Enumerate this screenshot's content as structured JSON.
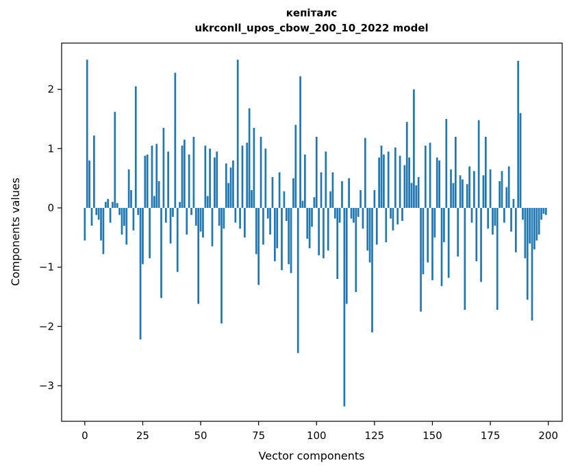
{
  "figure": {
    "background": "#ffffff",
    "frame_color": "#000000"
  },
  "chart_data": {
    "type": "bar",
    "title_line1": "кепіталс",
    "title_line2": "ukrconll_upos_cbow_200_10_2022 model",
    "xlabel": "Vector components",
    "ylabel": "Components values",
    "bar_color": "#1f77b4",
    "legend": "none",
    "grid": false,
    "xlim": [
      -10,
      206
    ],
    "ylim": [
      -3.6,
      2.78
    ],
    "xticks": {
      "values": [
        0,
        25,
        50,
        75,
        100,
        125,
        150,
        175,
        200
      ],
      "labels": [
        "0",
        "25",
        "50",
        "75",
        "100",
        "125",
        "150",
        "175",
        "200"
      ]
    },
    "yticks": {
      "values": [
        2,
        1,
        0,
        -1,
        -2,
        -3
      ],
      "labels": [
        "2",
        "1",
        "0",
        "−1",
        "−2",
        "−3"
      ]
    },
    "x_start": 0,
    "values": [
      -0.55,
      2.5,
      0.8,
      -0.3,
      1.22,
      -0.12,
      -0.2,
      -0.55,
      -0.78,
      0.1,
      0.15,
      -0.25,
      0.1,
      1.62,
      0.08,
      -0.12,
      -0.45,
      -0.3,
      -0.62,
      0.65,
      0.3,
      -0.38,
      2.05,
      -0.12,
      -2.22,
      -0.95,
      0.88,
      0.9,
      -0.85,
      1.05,
      0.2,
      1.08,
      0.45,
      -1.52,
      1.35,
      -0.25,
      0.95,
      -0.6,
      -0.15,
      2.28,
      -1.08,
      0.1,
      1.05,
      1.15,
      -0.45,
      0.9,
      -0.12,
      1.2,
      -0.3,
      -1.62,
      -0.4,
      -0.5,
      1.05,
      0.2,
      1.0,
      -0.65,
      0.85,
      0.95,
      -0.3,
      -1.95,
      -0.35,
      0.75,
      0.42,
      0.68,
      0.8,
      -0.25,
      2.5,
      -0.35,
      1.05,
      -0.5,
      1.1,
      1.68,
      0.3,
      1.35,
      -0.78,
      -1.3,
      1.2,
      -0.62,
      1.0,
      -0.18,
      -0.45,
      0.52,
      -0.9,
      -0.68,
      0.6,
      -1.05,
      0.28,
      -0.22,
      -0.95,
      -1.1,
      0.5,
      1.4,
      -2.45,
      2.22,
      0.12,
      0.9,
      -0.52,
      -0.68,
      -0.32,
      0.18,
      1.2,
      -0.8,
      0.6,
      -0.85,
      0.95,
      -0.72,
      0.28,
      0.6,
      -0.18,
      -1.2,
      -0.25,
      0.45,
      -3.35,
      -1.62,
      0.5,
      -0.18,
      -0.25,
      -1.42,
      -0.15,
      0.3,
      -0.35,
      1.18,
      -0.72,
      -0.92,
      -2.1,
      0.3,
      -0.62,
      0.85,
      1.05,
      0.9,
      -0.58,
      0.95,
      -0.18,
      -0.38,
      1.02,
      -0.28,
      0.88,
      -0.22,
      0.72,
      1.45,
      0.85,
      0.42,
      2.0,
      0.38,
      0.52,
      -1.75,
      -1.12,
      1.05,
      -0.92,
      1.1,
      -1.22,
      -0.5,
      0.85,
      0.8,
      -1.32,
      -0.58,
      1.5,
      -1.18,
      0.65,
      0.42,
      1.2,
      -0.82,
      0.55,
      0.48,
      -1.72,
      0.4,
      0.7,
      -0.25,
      0.62,
      -0.9,
      1.48,
      -1.25,
      0.55,
      1.2,
      -0.35,
      0.65,
      -0.45,
      -0.3,
      -1.72,
      0.45,
      0.62,
      -0.25,
      0.35,
      0.7,
      -0.4,
      0.15,
      -0.75,
      2.48,
      1.6,
      -0.2,
      -0.85,
      -1.55,
      -0.6,
      -1.9,
      -0.7,
      -0.55,
      -0.45,
      -0.2,
      -0.1,
      -0.12
    ]
  }
}
